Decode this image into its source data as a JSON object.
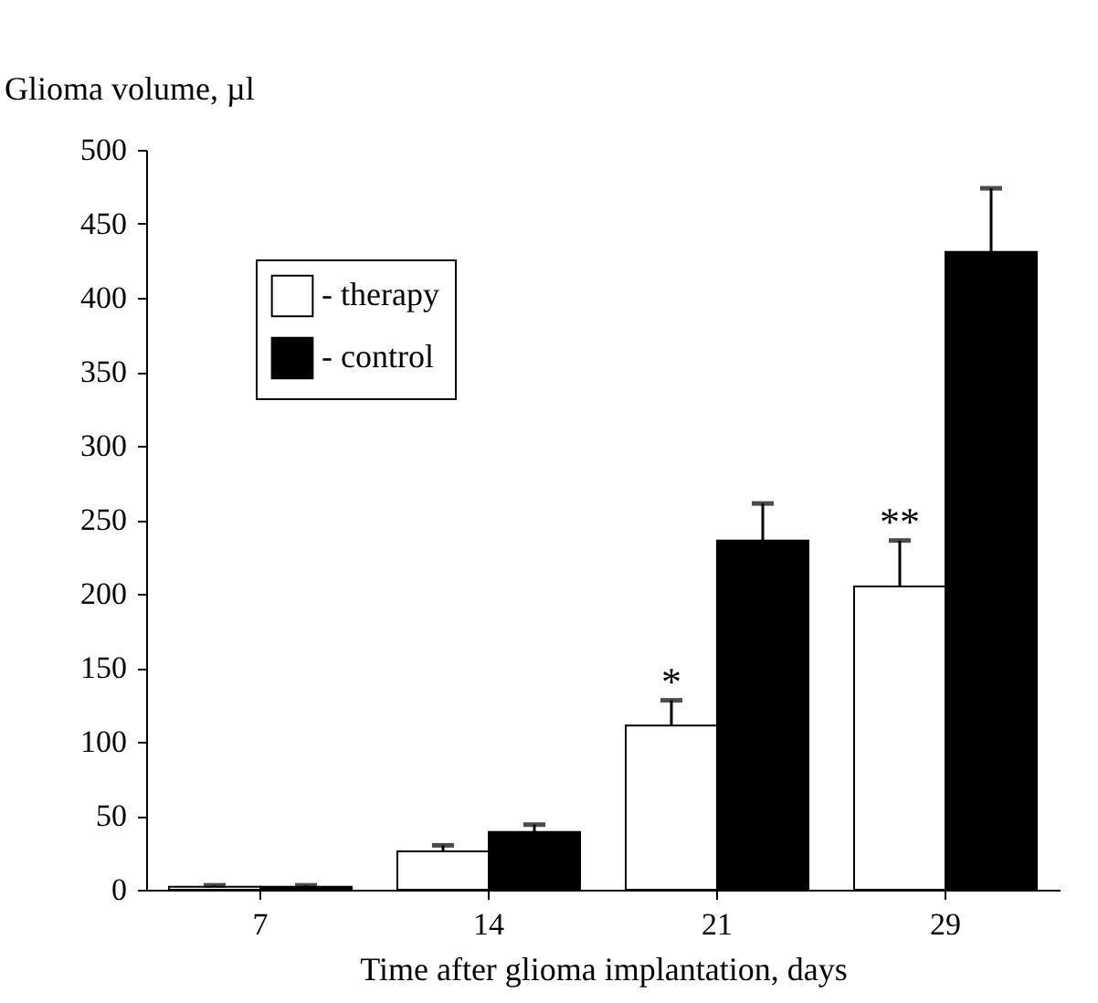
{
  "chart_data": {
    "type": "bar",
    "ylabel": "Glioma volume, µl",
    "xlabel": "Time after glioma implantation, days",
    "categories": [
      "7",
      "14",
      "21",
      "29"
    ],
    "series": [
      {
        "name": "- therapy",
        "color": "#ffffff",
        "values": [
          2,
          26,
          111,
          205
        ],
        "errors": [
          [
            2,
            3
          ],
          [
            26,
            30
          ],
          [
            111,
            128
          ],
          [
            205,
            236
          ]
        ]
      },
      {
        "name": "- control",
        "color": "#000000",
        "values": [
          2,
          39,
          236,
          431
        ],
        "errors": [
          [
            2,
            3
          ],
          [
            39,
            44
          ],
          [
            236,
            261
          ],
          [
            431,
            474
          ]
        ]
      }
    ],
    "ylim": [
      0,
      500
    ],
    "yticks": [
      0,
      50,
      100,
      150,
      200,
      250,
      300,
      350,
      400,
      450,
      500
    ],
    "legend": "top left",
    "grid": false,
    "annotations": [
      {
        "text": "*",
        "x": "21",
        "y": 128
      },
      {
        "text": "**",
        "x": "29",
        "y": 236
      }
    ]
  }
}
